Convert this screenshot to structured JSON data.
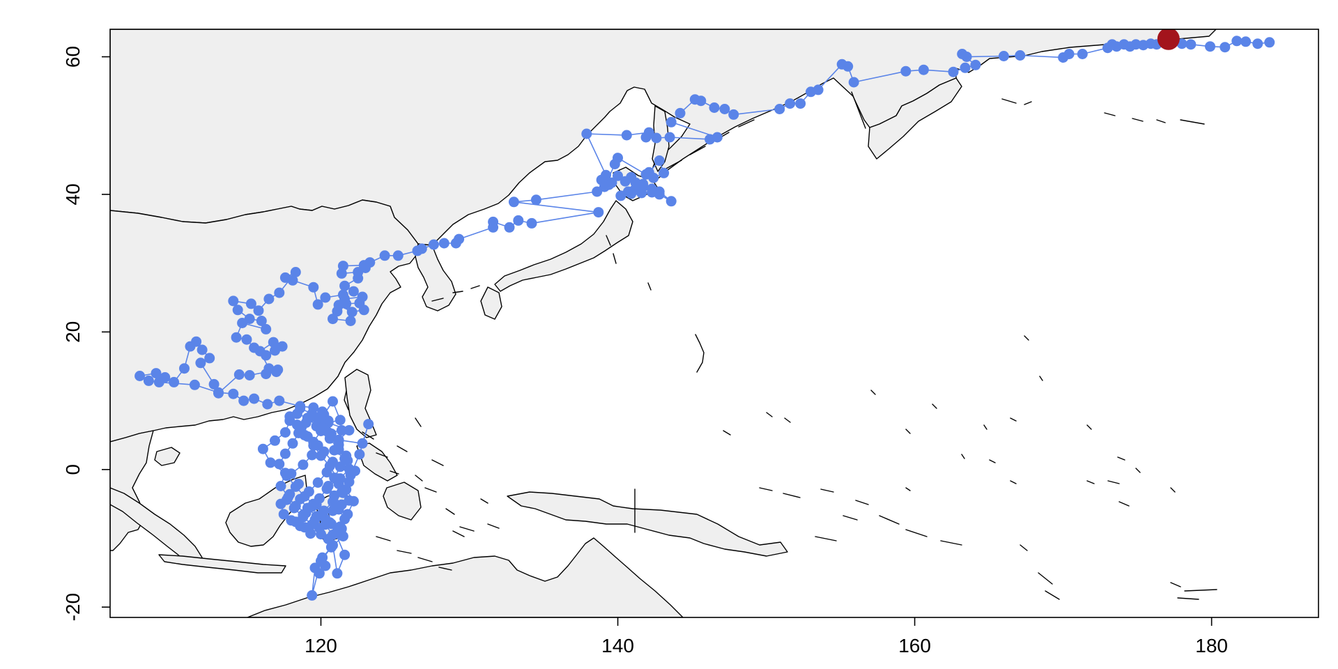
{
  "chart_data": {
    "type": "scatter",
    "title": "",
    "xlabel": "",
    "ylabel": "",
    "xlim": [
      105.8,
      187.2
    ],
    "ylim": [
      -21.5,
      64.0
    ],
    "x_ticks": [
      120,
      140,
      160,
      180
    ],
    "y_ticks": [
      -20,
      0,
      20,
      40,
      60
    ],
    "grid": false,
    "legend": "none",
    "colors": {
      "track": "#5a84e8",
      "current": "#a3141c",
      "land": "#efefef",
      "coast": "#000000"
    },
    "current_position": {
      "x": 177.1,
      "y": 62.6
    },
    "series": [
      {
        "points": [
          [
            183.9,
            62.1
          ],
          [
            183.1,
            61.9
          ],
          [
            182.3,
            62.2
          ],
          [
            181.7,
            62.3
          ],
          [
            180.9,
            61.4
          ],
          [
            179.9,
            61.5
          ],
          [
            178.6,
            61.8
          ],
          [
            178.0,
            61.9
          ],
          [
            177.1,
            62.1
          ],
          [
            176.3,
            61.8
          ],
          [
            175.9,
            61.9
          ],
          [
            175.4,
            61.7
          ],
          [
            174.9,
            61.8
          ],
          [
            174.5,
            61.5
          ],
          [
            174.1,
            61.8
          ],
          [
            173.6,
            61.5
          ],
          [
            173.3,
            61.8
          ],
          [
            173.0,
            61.3
          ],
          [
            171.3,
            60.4
          ],
          [
            170.4,
            60.4
          ],
          [
            170.0,
            59.9
          ],
          [
            167.1,
            60.2
          ],
          [
            166.0,
            60.1
          ],
          [
            163.5,
            60.0
          ],
          [
            163.2,
            60.4
          ],
          [
            164.1,
            58.8
          ],
          [
            163.4,
            58.4
          ],
          [
            162.6,
            57.8
          ],
          [
            160.6,
            58.1
          ],
          [
            159.4,
            57.9
          ],
          [
            155.9,
            56.3
          ],
          [
            155.5,
            58.6
          ],
          [
            155.1,
            58.9
          ],
          [
            153.5,
            55.2
          ],
          [
            153.0,
            54.9
          ],
          [
            152.3,
            53.2
          ],
          [
            151.6,
            53.2
          ],
          [
            150.9,
            52.4
          ],
          [
            147.8,
            51.6
          ],
          [
            147.2,
            52.4
          ],
          [
            146.5,
            52.6
          ],
          [
            145.6,
            53.6
          ],
          [
            145.2,
            53.8
          ],
          [
            144.2,
            51.8
          ],
          [
            143.6,
            50.5
          ],
          [
            146.7,
            48.3
          ],
          [
            146.2,
            48.0
          ],
          [
            143.5,
            48.3
          ],
          [
            142.6,
            48.2
          ],
          [
            141.9,
            48.3
          ],
          [
            142.1,
            49.0
          ],
          [
            140.6,
            48.6
          ],
          [
            137.9,
            48.8
          ],
          [
            139.2,
            42.8
          ],
          [
            138.9,
            42.1
          ],
          [
            139.4,
            41.4
          ],
          [
            139.6,
            41.7
          ],
          [
            140.0,
            42.7
          ],
          [
            140.5,
            41.9
          ],
          [
            140.9,
            42.5
          ],
          [
            141.2,
            41.7
          ],
          [
            141.7,
            41.1
          ],
          [
            141.1,
            40.6
          ],
          [
            140.7,
            40.4
          ],
          [
            140.2,
            39.8
          ],
          [
            140.9,
            40.1
          ],
          [
            141.6,
            40.2
          ],
          [
            142.3,
            40.3
          ],
          [
            142.8,
            40.0
          ],
          [
            143.6,
            39.0
          ],
          [
            142.8,
            40.4
          ],
          [
            142.3,
            40.8
          ],
          [
            141.7,
            41.5
          ],
          [
            142.1,
            43.2
          ],
          [
            142.8,
            44.9
          ],
          [
            143.1,
            43.1
          ],
          [
            142.4,
            42.4
          ],
          [
            141.9,
            42.9
          ],
          [
            140.0,
            45.3
          ],
          [
            139.8,
            44.4
          ],
          [
            139.1,
            41.1
          ],
          [
            138.6,
            40.4
          ],
          [
            134.5,
            39.2
          ],
          [
            133.0,
            38.9
          ],
          [
            138.7,
            37.4
          ],
          [
            134.2,
            35.8
          ],
          [
            133.3,
            36.2
          ],
          [
            132.7,
            35.2
          ],
          [
            131.6,
            36.0
          ],
          [
            131.6,
            35.2
          ],
          [
            129.3,
            33.5
          ],
          [
            129.1,
            32.9
          ],
          [
            128.3,
            32.9
          ],
          [
            127.6,
            32.7
          ],
          [
            126.8,
            32.1
          ],
          [
            126.5,
            31.8
          ],
          [
            125.2,
            31.1
          ],
          [
            124.3,
            31.1
          ],
          [
            123.3,
            30.1
          ],
          [
            122.9,
            29.7
          ],
          [
            121.5,
            29.6
          ],
          [
            121.4,
            28.5
          ],
          [
            122.5,
            28.7
          ],
          [
            123.0,
            29.3
          ],
          [
            122.5,
            27.8
          ],
          [
            121.6,
            26.7
          ],
          [
            122.2,
            25.9
          ],
          [
            122.8,
            25.1
          ],
          [
            121.6,
            24.8
          ],
          [
            121.2,
            23.9
          ],
          [
            122.1,
            22.9
          ],
          [
            122.9,
            23.2
          ],
          [
            122.6,
            24.2
          ],
          [
            121.7,
            24.1
          ],
          [
            121.1,
            23.0
          ],
          [
            120.8,
            21.9
          ],
          [
            122.0,
            21.6
          ],
          [
            121.5,
            25.4
          ],
          [
            120.3,
            25.0
          ],
          [
            119.8,
            24.0
          ],
          [
            119.5,
            26.5
          ],
          [
            118.1,
            27.5
          ],
          [
            117.6,
            27.9
          ],
          [
            118.3,
            28.7
          ],
          [
            117.2,
            25.7
          ],
          [
            116.5,
            24.8
          ],
          [
            115.8,
            23.1
          ],
          [
            115.3,
            24.1
          ],
          [
            114.1,
            24.5
          ],
          [
            114.4,
            23.2
          ],
          [
            115.2,
            21.9
          ],
          [
            116.0,
            21.6
          ],
          [
            116.3,
            20.4
          ],
          [
            114.7,
            21.3
          ],
          [
            114.3,
            19.2
          ],
          [
            115.0,
            18.9
          ],
          [
            115.5,
            17.7
          ],
          [
            116.3,
            16.6
          ],
          [
            116.9,
            17.3
          ],
          [
            117.4,
            17.9
          ],
          [
            116.8,
            18.5
          ],
          [
            115.9,
            17.2
          ],
          [
            116.5,
            14.7
          ],
          [
            117.0,
            14.2
          ],
          [
            116.3,
            13.9
          ],
          [
            117.1,
            14.5
          ],
          [
            115.2,
            13.7
          ],
          [
            114.5,
            13.8
          ],
          [
            113.1,
            11.1
          ],
          [
            112.8,
            12.4
          ],
          [
            111.9,
            15.5
          ],
          [
            112.5,
            16.2
          ],
          [
            112.0,
            17.4
          ],
          [
            111.6,
            18.6
          ],
          [
            111.2,
            17.9
          ],
          [
            110.8,
            14.7
          ],
          [
            110.1,
            12.7
          ],
          [
            109.5,
            13.4
          ],
          [
            108.9,
            14.0
          ],
          [
            107.8,
            13.6
          ],
          [
            108.4,
            12.9
          ],
          [
            109.1,
            12.7
          ],
          [
            111.5,
            12.3
          ],
          [
            113.1,
            11.2
          ],
          [
            114.1,
            11.0
          ],
          [
            114.8,
            10.0
          ],
          [
            115.5,
            10.3
          ],
          [
            116.4,
            9.5
          ],
          [
            117.2,
            10.0
          ],
          [
            118.6,
            9.2
          ],
          [
            119.5,
            9.0
          ],
          [
            120.2,
            8.0
          ],
          [
            120.8,
            9.9
          ],
          [
            121.3,
            7.2
          ],
          [
            120.5,
            6.8
          ],
          [
            121.9,
            5.7
          ],
          [
            121.2,
            4.3
          ],
          [
            122.8,
            3.8
          ],
          [
            123.2,
            6.6
          ],
          [
            122.6,
            2.2
          ],
          [
            122.0,
            -0.8
          ],
          [
            121.2,
            -2.1
          ],
          [
            121.5,
            -3.4
          ],
          [
            121.9,
            -4.5
          ],
          [
            121.2,
            -5.8
          ],
          [
            121.6,
            -7.2
          ],
          [
            121.4,
            -8.6
          ],
          [
            121.5,
            -9.7
          ],
          [
            120.7,
            -11.3
          ],
          [
            120.1,
            -12.8
          ],
          [
            120.3,
            -14.0
          ],
          [
            119.9,
            -15.1
          ],
          [
            119.6,
            -14.3
          ],
          [
            119.4,
            -18.3
          ],
          [
            120.0,
            -13.3
          ],
          [
            120.8,
            -11.0
          ],
          [
            121.1,
            -15.1
          ],
          [
            121.6,
            -12.4
          ],
          [
            121.0,
            -9.3
          ],
          [
            120.7,
            -7.9
          ],
          [
            120.1,
            -6.4
          ],
          [
            119.7,
            -5.1
          ],
          [
            119.0,
            -6.3
          ],
          [
            118.3,
            -5.3
          ],
          [
            117.8,
            -4.0
          ],
          [
            117.3,
            -2.4
          ],
          [
            117.6,
            -0.5
          ],
          [
            116.6,
            1.0
          ],
          [
            116.1,
            3.0
          ],
          [
            116.9,
            4.2
          ],
          [
            117.6,
            5.4
          ],
          [
            117.9,
            7.1
          ],
          [
            118.4,
            8.1
          ],
          [
            119.1,
            7.5
          ],
          [
            119.7,
            6.3
          ],
          [
            120.5,
            5.4
          ],
          [
            121.4,
            5.7
          ],
          [
            121.2,
            4.2
          ],
          [
            120.9,
            2.8
          ],
          [
            121.6,
            1.6
          ],
          [
            121.9,
            0.1
          ],
          [
            121.3,
            -1.3
          ],
          [
            120.5,
            -2.4
          ],
          [
            120.9,
            -3.8
          ],
          [
            121.4,
            -5.1
          ],
          [
            120.8,
            -6.0
          ],
          [
            120.3,
            -7.2
          ],
          [
            119.9,
            -8.5
          ],
          [
            119.3,
            -9.3
          ],
          [
            118.6,
            -8.2
          ],
          [
            118.0,
            -7.4
          ],
          [
            117.5,
            -6.5
          ],
          [
            117.3,
            -5.0
          ],
          [
            117.9,
            -3.6
          ],
          [
            118.5,
            -2.1
          ],
          [
            118.0,
            -0.6
          ],
          [
            118.8,
            0.7
          ],
          [
            119.4,
            2.1
          ],
          [
            119.8,
            3.5
          ],
          [
            119.1,
            4.8
          ],
          [
            118.7,
            6.2
          ],
          [
            119.3,
            7.6
          ],
          [
            120.1,
            8.4
          ],
          [
            120.5,
            7.1
          ],
          [
            120.0,
            5.6
          ],
          [
            119.5,
            4.0
          ],
          [
            120.2,
            2.6
          ],
          [
            120.8,
            1.1
          ],
          [
            120.4,
            -0.4
          ],
          [
            119.8,
            -1.9
          ],
          [
            119.2,
            -3.2
          ],
          [
            118.6,
            -4.3
          ],
          [
            119.1,
            -5.6
          ],
          [
            119.7,
            -6.8
          ],
          [
            120.3,
            -8.0
          ],
          [
            120.8,
            -9.5
          ],
          [
            121.3,
            -8.3
          ],
          [
            121.8,
            -6.5
          ],
          [
            122.2,
            -4.6
          ],
          [
            121.7,
            -2.9
          ],
          [
            121.1,
            -1.3
          ],
          [
            120.6,
            0.5
          ],
          [
            120.0,
            2.0
          ],
          [
            119.5,
            3.5
          ],
          [
            118.9,
            5.0
          ],
          [
            118.4,
            6.5
          ],
          [
            117.9,
            7.7
          ],
          [
            118.6,
            8.9
          ],
          [
            119.4,
            8.1
          ],
          [
            120.0,
            6.9
          ],
          [
            120.7,
            5.2
          ],
          [
            121.2,
            3.6
          ],
          [
            121.7,
            2.0
          ],
          [
            121.3,
            0.4
          ],
          [
            120.9,
            -1.2
          ],
          [
            120.4,
            -2.8
          ],
          [
            119.9,
            -4.2
          ],
          [
            119.4,
            -5.4
          ],
          [
            118.8,
            -6.6
          ],
          [
            118.3,
            -7.6
          ],
          [
            118.9,
            -8.4
          ],
          [
            119.6,
            -7.3
          ],
          [
            120.2,
            -6.0
          ],
          [
            120.8,
            -4.7
          ],
          [
            121.4,
            -3.3
          ],
          [
            121.9,
            -1.8
          ],
          [
            122.3,
            -0.2
          ],
          [
            121.8,
            1.3
          ],
          [
            121.2,
            2.9
          ],
          [
            120.6,
            4.5
          ],
          [
            120.1,
            6.1
          ],
          [
            119.6,
            7.6
          ],
          [
            119.0,
            6.8
          ],
          [
            118.5,
            5.3
          ],
          [
            118.1,
            3.8
          ],
          [
            117.6,
            2.3
          ],
          [
            117.2,
            0.8
          ],
          [
            117.7,
            -0.9
          ],
          [
            118.3,
            -2.5
          ],
          [
            118.9,
            -3.9
          ],
          [
            119.5,
            -5.0
          ],
          [
            120.1,
            -6.3
          ],
          [
            120.6,
            -7.7
          ],
          [
            121.1,
            -9.0
          ],
          [
            120.5,
            -10.1
          ],
          [
            120.0,
            -9.4
          ],
          [
            119.4,
            -8.0
          ],
          [
            118.8,
            -6.9
          ],
          [
            118.2,
            -5.6
          ],
          [
            117.7,
            -4.4
          ]
        ]
      }
    ]
  }
}
